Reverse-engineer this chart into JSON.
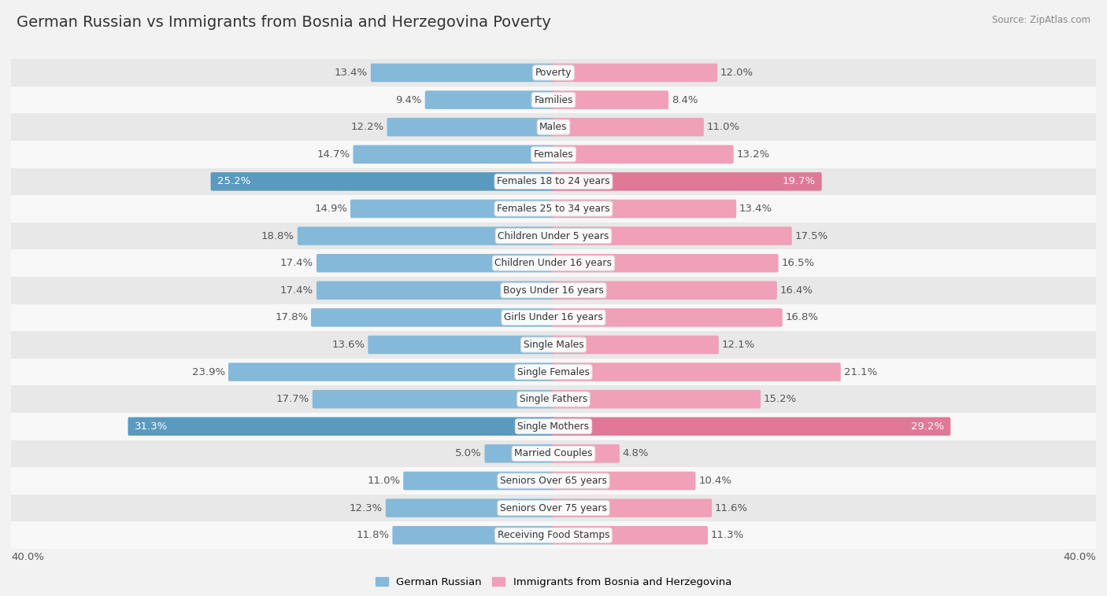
{
  "title": "German Russian vs Immigrants from Bosnia and Herzegovina Poverty",
  "source": "Source: ZipAtlas.com",
  "categories": [
    "Poverty",
    "Families",
    "Males",
    "Females",
    "Females 18 to 24 years",
    "Females 25 to 34 years",
    "Children Under 5 years",
    "Children Under 16 years",
    "Boys Under 16 years",
    "Girls Under 16 years",
    "Single Males",
    "Single Females",
    "Single Fathers",
    "Single Mothers",
    "Married Couples",
    "Seniors Over 65 years",
    "Seniors Over 75 years",
    "Receiving Food Stamps"
  ],
  "left_values": [
    13.4,
    9.4,
    12.2,
    14.7,
    25.2,
    14.9,
    18.8,
    17.4,
    17.4,
    17.8,
    13.6,
    23.9,
    17.7,
    31.3,
    5.0,
    11.0,
    12.3,
    11.8
  ],
  "right_values": [
    12.0,
    8.4,
    11.0,
    13.2,
    19.7,
    13.4,
    17.5,
    16.5,
    16.4,
    16.8,
    12.1,
    21.1,
    15.2,
    29.2,
    4.8,
    10.4,
    11.6,
    11.3
  ],
  "left_color": "#85b9d9",
  "right_color": "#f0a0b8",
  "left_highlight_color": "#5a9abf",
  "right_highlight_color": "#e07898",
  "left_label": "German Russian",
  "right_label": "Immigrants from Bosnia and Herzegovina",
  "axis_max": 40.0,
  "row_colors": [
    "#e8e8e8",
    "#f8f8f8"
  ],
  "highlight_rows": [
    4,
    13
  ],
  "value_fontsize": 9.5,
  "category_fontsize": 8.8,
  "title_fontsize": 14
}
